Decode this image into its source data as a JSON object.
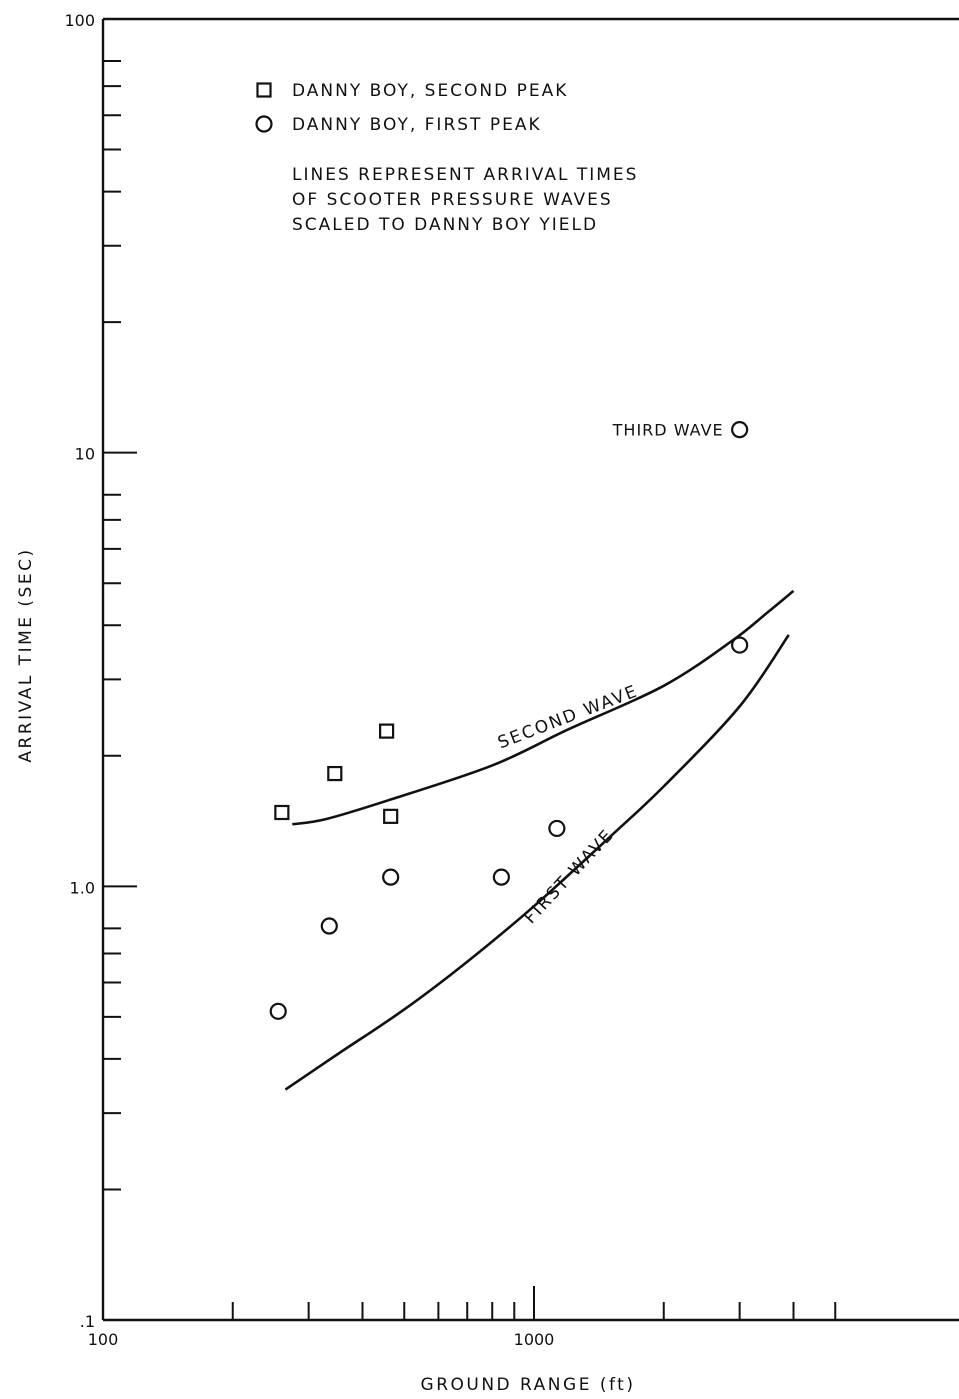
{
  "chart_data": {
    "type": "scatter",
    "title": "",
    "xlabel": "GROUND RANGE (ft)",
    "ylabel": "ARRIVAL TIME (SEC)",
    "x_scale": "log",
    "y_scale": "log",
    "xlim": [
      100,
      5000
    ],
    "ylim": [
      0.1,
      100
    ],
    "x_tick_labels": [
      {
        "value": 100,
        "label": "100"
      },
      {
        "value": 1000,
        "label": "1000"
      }
    ],
    "y_tick_labels": [
      {
        "value": 0.1,
        "label": ".1"
      },
      {
        "value": 1,
        "label": "1.0"
      },
      {
        "value": 10,
        "label": "10"
      },
      {
        "value": 100,
        "label": "100"
      }
    ],
    "x_minor_ticks": [
      200,
      300,
      400,
      500,
      600,
      700,
      800,
      900,
      2000,
      3000,
      4000,
      5000
    ],
    "y_minor_ticks": [
      0.2,
      0.3,
      0.4,
      0.5,
      0.6,
      0.7,
      0.8,
      2,
      3,
      4,
      5,
      6,
      7,
      8,
      20,
      30,
      40,
      50,
      60,
      70,
      80
    ],
    "grid": false,
    "legend_position": "top-left",
    "legend": [
      {
        "marker": "square",
        "label": "DANNY BOY, SECOND PEAK"
      },
      {
        "marker": "circle",
        "label": "DANNY BOY, FIRST PEAK"
      }
    ],
    "legend_note": [
      "LINES REPRESENT ARRIVAL TIMES",
      "OF SCOOTER PRESSURE WAVES",
      "SCALED TO DANNY BOY YIELD"
    ],
    "series": [
      {
        "marker": "square",
        "points": [
          {
            "x": 260,
            "y": 1.48
          },
          {
            "x": 345,
            "y": 1.82
          },
          {
            "x": 455,
            "y": 2.28
          },
          {
            "x": 465,
            "y": 1.45
          }
        ]
      },
      {
        "marker": "circle",
        "points": [
          {
            "x": 255,
            "y": 0.515
          },
          {
            "x": 335,
            "y": 0.81
          },
          {
            "x": 465,
            "y": 1.05
          },
          {
            "x": 840,
            "y": 1.05
          },
          {
            "x": 1130,
            "y": 1.36
          },
          {
            "x": 3000,
            "y": 3.6
          },
          {
            "x": 3000,
            "y": 11.3
          }
        ]
      }
    ],
    "lines": [
      {
        "label": "SECOND WAVE",
        "points": [
          {
            "x": 275,
            "y": 1.39
          },
          {
            "x": 330,
            "y": 1.43
          },
          {
            "x": 460,
            "y": 1.58
          },
          {
            "x": 800,
            "y": 1.9
          },
          {
            "x": 1200,
            "y": 2.3
          },
          {
            "x": 2000,
            "y": 2.9
          },
          {
            "x": 2900,
            "y": 3.7
          },
          {
            "x": 3500,
            "y": 4.3
          },
          {
            "x": 4000,
            "y": 4.8
          }
        ]
      },
      {
        "label": "FIRST WAVE",
        "points": [
          {
            "x": 265,
            "y": 0.34
          },
          {
            "x": 350,
            "y": 0.41
          },
          {
            "x": 500,
            "y": 0.52
          },
          {
            "x": 700,
            "y": 0.67
          },
          {
            "x": 1000,
            "y": 0.9
          },
          {
            "x": 1500,
            "y": 1.3
          },
          {
            "x": 2000,
            "y": 1.7
          },
          {
            "x": 3000,
            "y": 2.6
          },
          {
            "x": 3900,
            "y": 3.8
          }
        ]
      }
    ],
    "annotations": [
      {
        "text": "THIRD WAVE",
        "x": 3000,
        "y": 11.3
      }
    ]
  }
}
